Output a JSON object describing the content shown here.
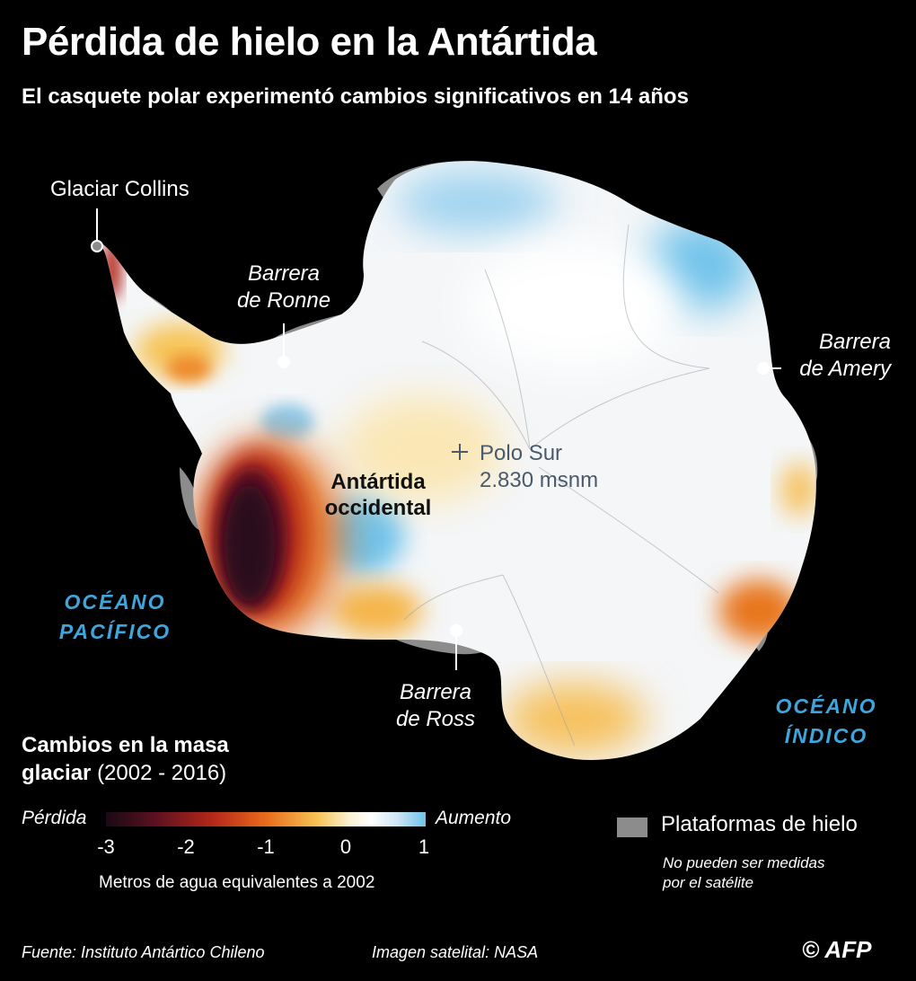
{
  "header": {
    "title": "Pérdida de hielo en la Antártida",
    "subtitle": "El casquete polar experimentó cambios significativos en 14 años"
  },
  "map": {
    "labels": {
      "collins": "Glaciar Collins",
      "ronne_1": "Barrera",
      "ronne_2": "de Ronne",
      "amery_1": "Barrera",
      "amery_2": "de Amery",
      "ross_1": "Barrera",
      "ross_2": "de Ross",
      "west_1": "Antártida",
      "west_2": "occidental",
      "pole_1": "Polo Sur",
      "pole_2": "2.830 msnm",
      "pacific_1": "OCÉANO",
      "pacific_2": "PACÍFICO",
      "indian_1": "OCÉANO",
      "indian_2": "ÍNDICO"
    },
    "colors": {
      "loss_strong": "#2a0e1e",
      "loss": "#c0301a",
      "loss_mild": "#f5b54a",
      "neutral": "#ffffff",
      "gain": "#6fc2ea",
      "ice_shelf": "#8c8c8c",
      "ocean_label": "#3ea6dc"
    }
  },
  "legend": {
    "title_bold_1": "Cambios en la masa",
    "title_bold_2": "glaciar",
    "title_period": "(2002 - 2016)",
    "low_label": "Pérdida",
    "high_label": "Aumento",
    "ticks": [
      "-3",
      "-2",
      "-1",
      "0",
      "1"
    ],
    "units": "Metros de agua equivalentes a 2002",
    "shelf_label": "Plataformas de hielo",
    "shelf_note_1": "No pueden ser medidas",
    "shelf_note_2": "por el satélite"
  },
  "footer": {
    "source": "Fuente: Instituto Antártico Chileno",
    "imagery": "Imagen satelital: NASA",
    "credit": "© AFP"
  }
}
